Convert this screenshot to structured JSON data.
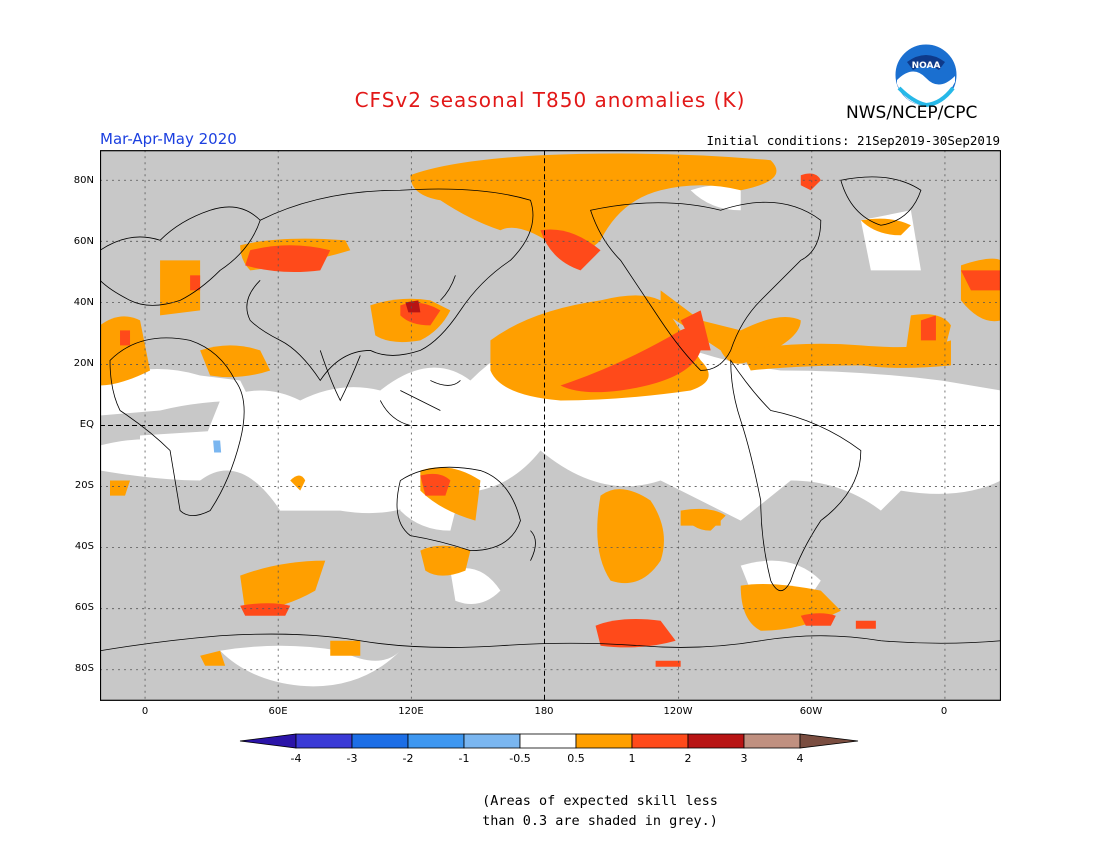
{
  "header": {
    "title": "CFSv2 seasonal T850 anomalies (K)",
    "agency": "NWS/NCEP/CPC",
    "season": "Mar-Apr-May 2020",
    "initial_conditions": "Initial conditions: 21Sep2019-30Sep2019"
  },
  "logo": {
    "text": "NOAA"
  },
  "map": {
    "lat_labels": [
      "80N",
      "60N",
      "40N",
      "20N",
      "EQ",
      "20S",
      "40S",
      "60S",
      "80S"
    ],
    "lon_labels": [
      "0",
      "60E",
      "120E",
      "180",
      "120W",
      "60W",
      "0"
    ],
    "colors": {
      "grey_low_skill": "#c8c8c8",
      "neutral": "#ffffff",
      "warm_0_5_1": "#ff9f00",
      "warm_1_2": "#ff4a1a",
      "warm_2_3": "#b81414",
      "cool_-1_-0_5": "#7ab6f0"
    }
  },
  "colorbar": {
    "labels": [
      "-4",
      "-3",
      "-2",
      "-1",
      "-0.5",
      "0.5",
      "1",
      "2",
      "3",
      "4"
    ],
    "colors": [
      "#2b14a8",
      "#3a3ad6",
      "#1c6ee6",
      "#3e97f0",
      "#7ab6f0",
      "#ffffff",
      "#ff9f00",
      "#ff4a1a",
      "#b81414",
      "#c09080",
      "#7a4d40"
    ]
  },
  "note": {
    "line1": "(Areas of expected skill less",
    "line2": "than 0.3 are shaded in grey.)"
  }
}
